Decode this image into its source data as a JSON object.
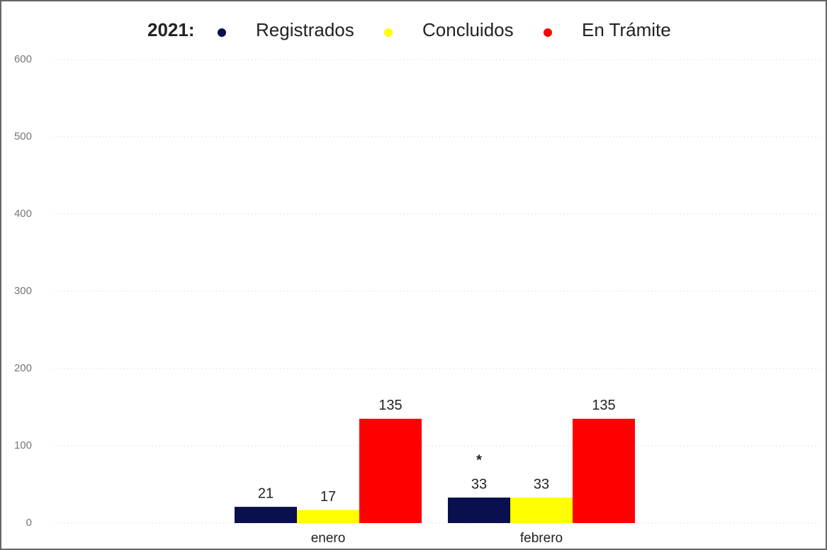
{
  "chart_data": {
    "type": "bar",
    "legend_title": "2021:",
    "categories": [
      "enero",
      "febrero"
    ],
    "series": [
      {
        "name": "Registrados",
        "color": "#0a0f4d",
        "values": [
          21,
          33
        ]
      },
      {
        "name": "Concluidos",
        "color": "#ffff00",
        "values": [
          17,
          33
        ]
      },
      {
        "name": "En Trámite",
        "color": "#ff0000",
        "values": [
          135,
          135
        ]
      }
    ],
    "annotation": "*",
    "ylim": [
      0,
      600
    ],
    "yticks": [
      0,
      100,
      200,
      300,
      400,
      500,
      600
    ],
    "grid": true,
    "legend": "top"
  }
}
